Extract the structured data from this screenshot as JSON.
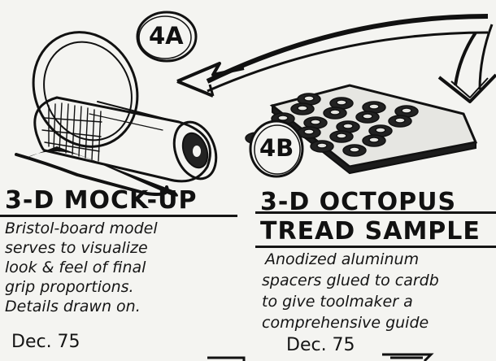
{
  "left_panel": {
    "badge": "4A",
    "heading": "3-D MOCK-UP",
    "lines": [
      "Bristol-board model",
      "serves to visualize",
      "look & feel of final",
      "grip proportions.",
      "Details drawn on."
    ],
    "date": "Dec. 75"
  },
  "right_panel": {
    "badge": "4B",
    "heading_lines": [
      "3-D OCTOPUS",
      "TREAD SAMPLE"
    ],
    "lines": [
      "Anodized aluminum",
      "spacers glued to cardb",
      "to give toolmaker a",
      "comprehensive guide"
    ],
    "date": "Dec. 75"
  }
}
